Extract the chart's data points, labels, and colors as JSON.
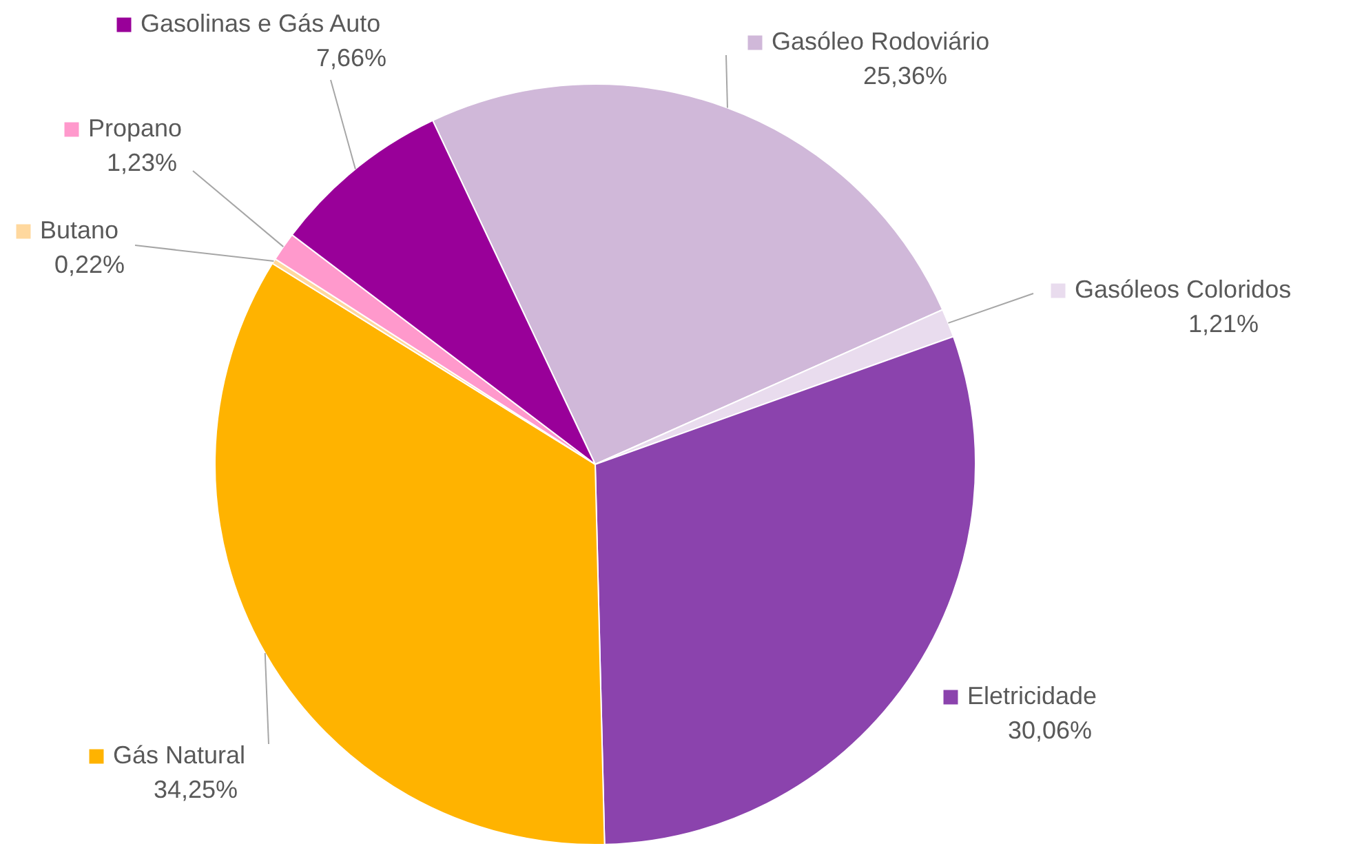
{
  "chart_data": {
    "type": "pie",
    "categories": [
      "Gasóleo Rodoviário",
      "Gasóleos Coloridos",
      "Eletricidade",
      "Gás Natural",
      "Butano",
      "Propano",
      "Gasolinas e Gás Auto"
    ],
    "values": [
      25.36,
      1.21,
      30.06,
      34.25,
      0.22,
      1.23,
      7.66
    ],
    "value_labels": [
      "25,36%",
      "1,21%",
      "30,06%",
      "34,25%",
      "0,22%",
      "1,23%",
      "7,66%"
    ],
    "colors": [
      "#d0b8d9",
      "#e9dcee",
      "#8b43ad",
      "#ffb300",
      "#ffd89e",
      "#ff99cc",
      "#990099"
    ],
    "legend": "top right"
  }
}
